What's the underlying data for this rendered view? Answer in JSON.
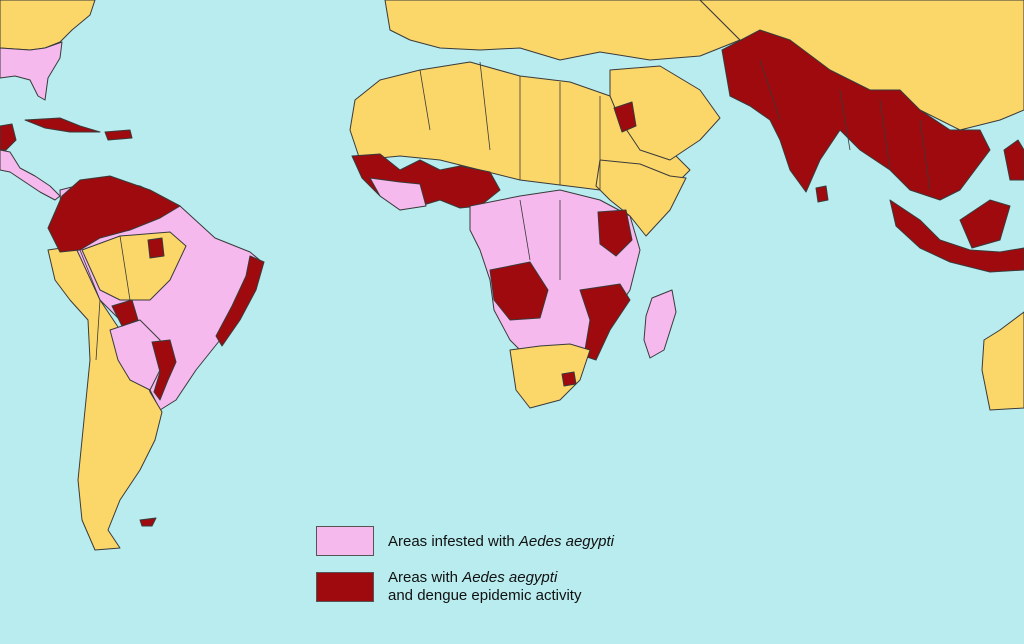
{
  "colors": {
    "ocean": "#b8ecef",
    "no_infestation": "#fbd76a",
    "infested": "#f5b9ee",
    "epidemic": "#9e0a0d"
  },
  "legend": {
    "infested": {
      "prefix": "Areas infested with ",
      "species": "Aedes aegypti"
    },
    "epidemic": {
      "prefix": "Areas with ",
      "species": "Aedes aegypti",
      "line2": "and dengue epidemic activity"
    }
  }
}
